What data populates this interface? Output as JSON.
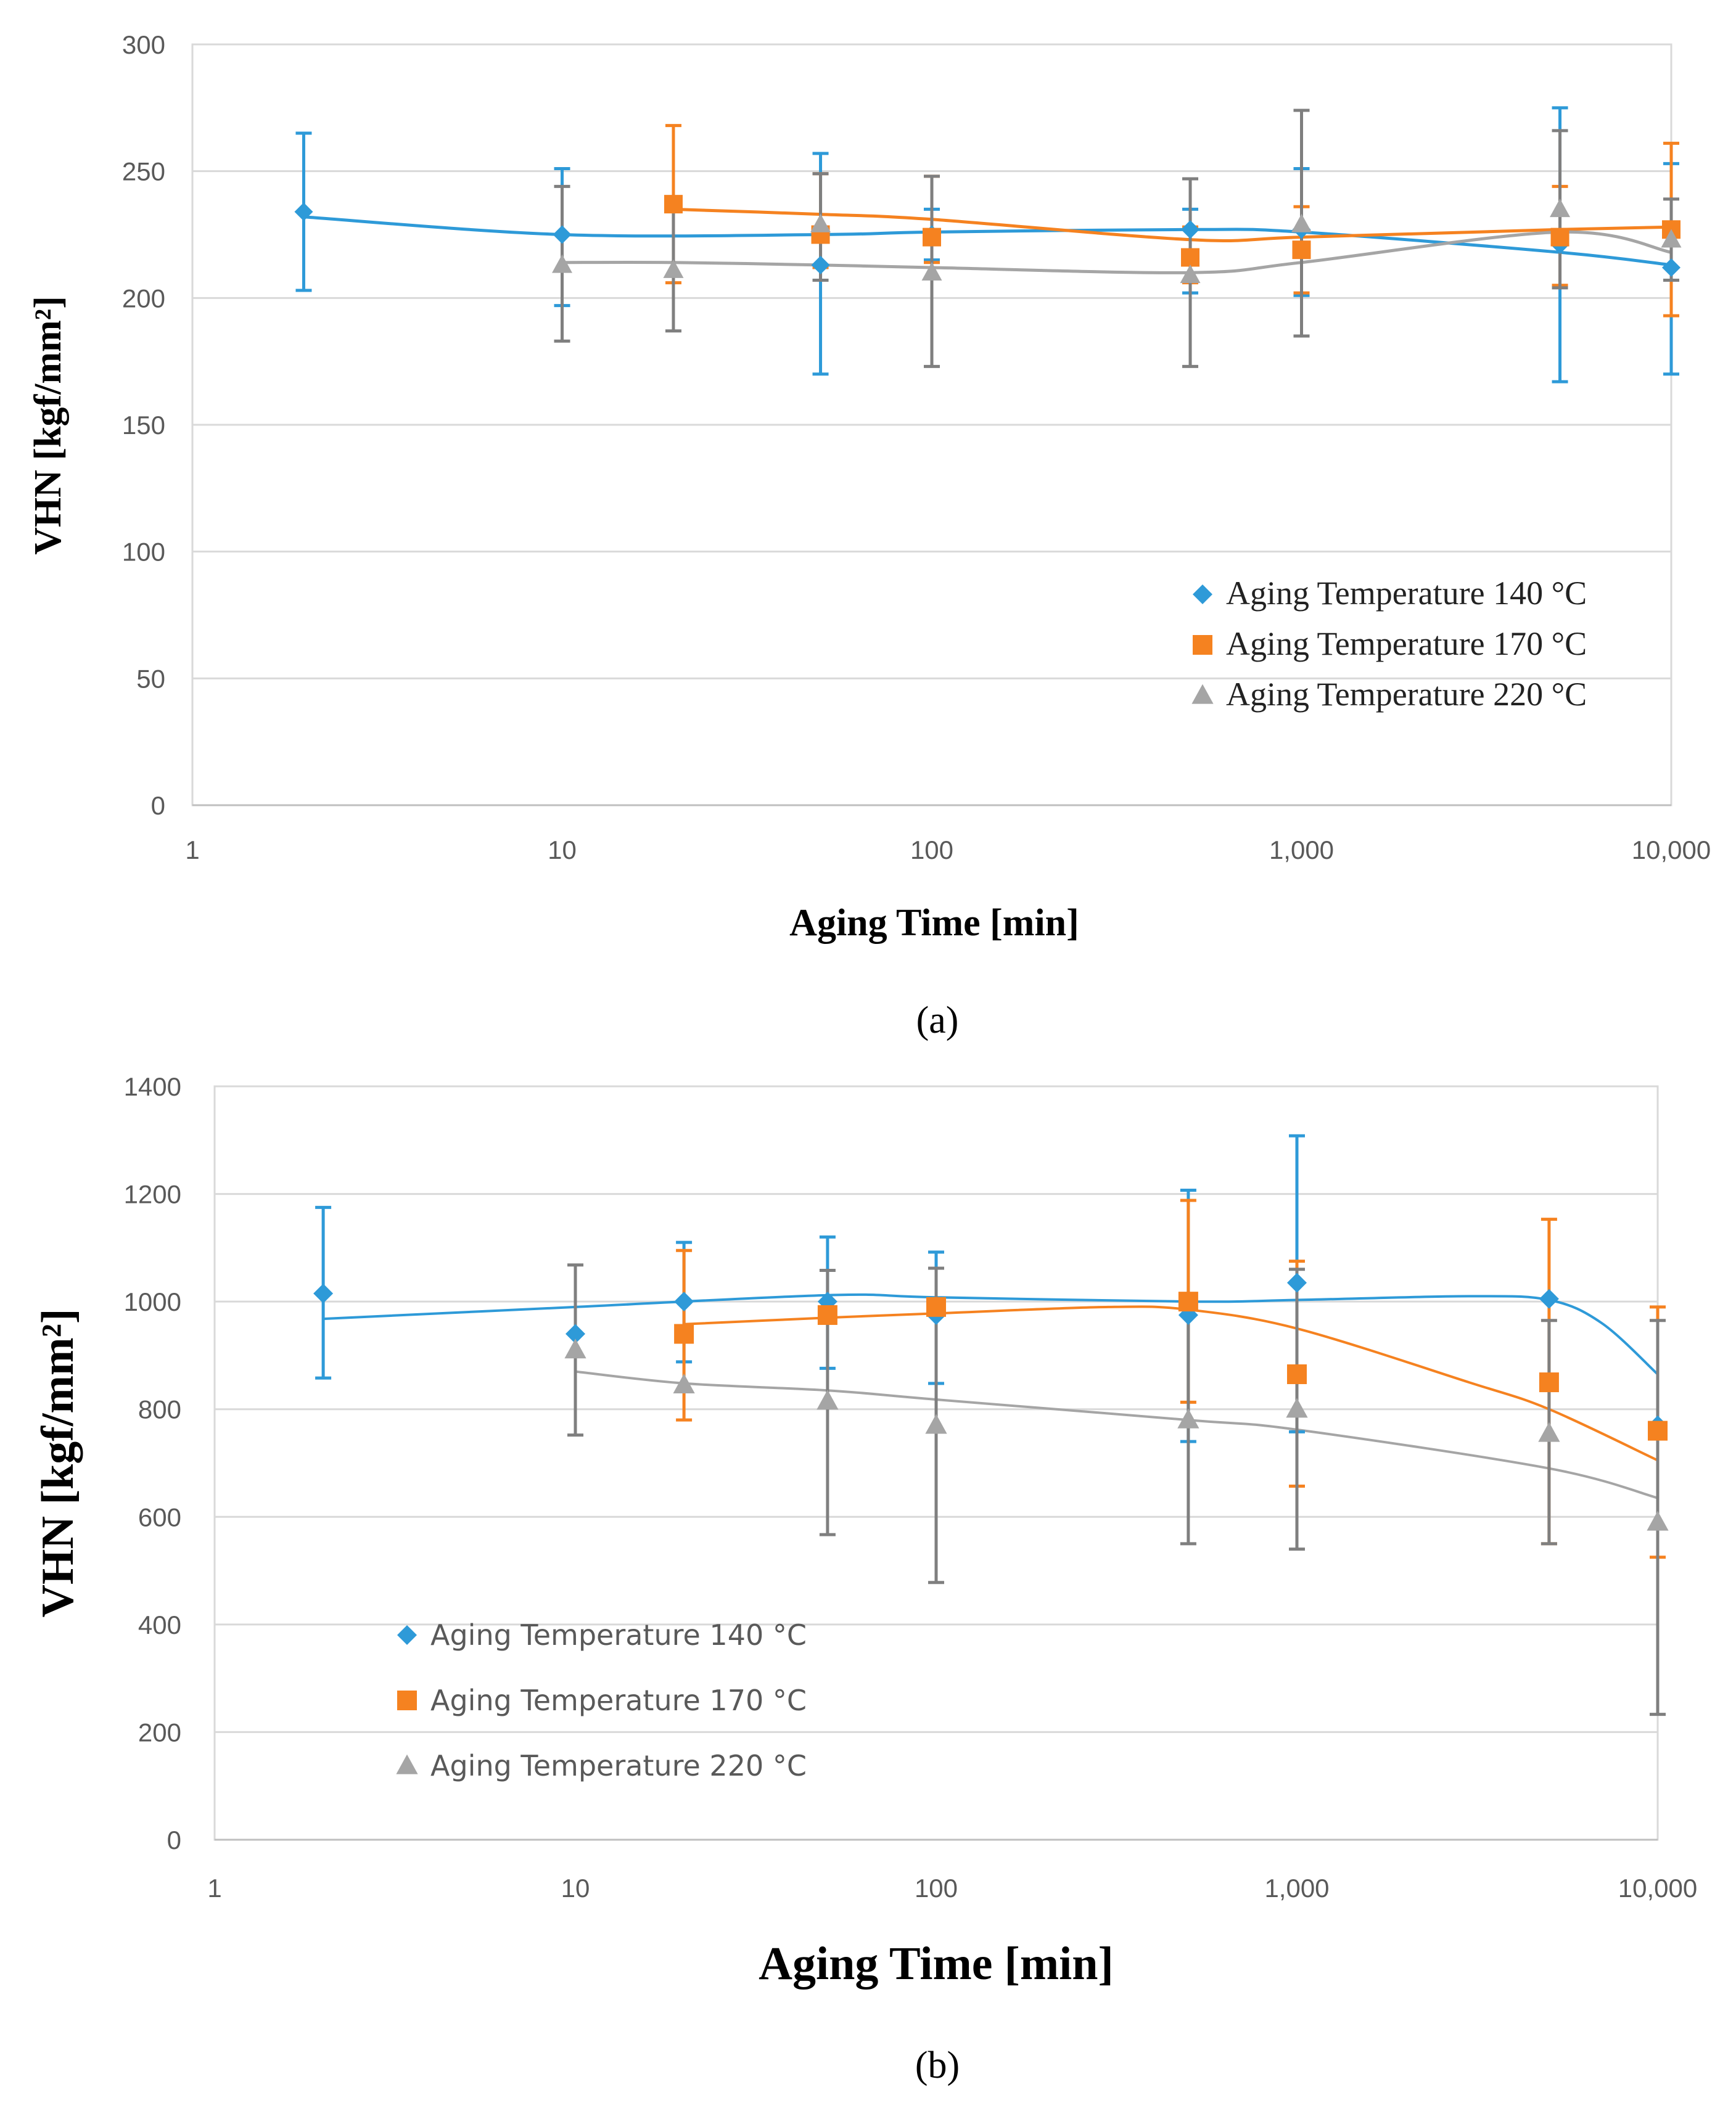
{
  "chart_data": [
    {
      "type": "line",
      "panel_label": "(a)",
      "xlabel": "Aging Time [min]",
      "ylabel": "VHN [kgf/mm²]",
      "xscale": "log",
      "xlim": [
        1,
        10000
      ],
      "ylim": [
        0,
        300
      ],
      "y_ticks": [
        "0",
        "50",
        "100",
        "150",
        "200",
        "250",
        "300"
      ],
      "x_ticks": [
        "1",
        "10",
        "100",
        "1,000",
        "10,000"
      ],
      "grid": "horizontal",
      "legend_position": "bottom-right",
      "series": [
        {
          "name": "Aging Temperature 140 °C",
          "color": "#2e9ad8",
          "marker": "diamond",
          "x": [
            2,
            10,
            50,
            100,
            500,
            1000,
            5000,
            10000
          ],
          "y": [
            234,
            225,
            213,
            225,
            227,
            227,
            221,
            212
          ],
          "err_low": [
            203,
            197,
            170,
            215,
            202,
            201,
            167,
            170
          ],
          "err_high": [
            265,
            251,
            257,
            235,
            235,
            251,
            275,
            253
          ],
          "trend_x": [
            2,
            10,
            50,
            100,
            500,
            1000,
            5000,
            10000
          ],
          "trend_y": [
            232,
            225,
            225,
            226,
            227,
            226,
            218,
            213
          ]
        },
        {
          "name": "Aging Temperature 170 °C",
          "color": "#f58220",
          "marker": "square",
          "x": [
            20,
            50,
            100,
            500,
            1000,
            5000,
            10000
          ],
          "y": [
            237,
            225,
            224,
            216,
            219,
            224,
            227
          ],
          "err_low": [
            206,
            212,
            214,
            206,
            202,
            205,
            193
          ],
          "err_high": [
            268,
            249,
            248,
            228,
            236,
            244,
            261
          ],
          "trend_x": [
            20,
            50,
            100,
            500,
            1000,
            5000,
            10000
          ],
          "trend_y": [
            235,
            233,
            231,
            223,
            224,
            227,
            228
          ]
        },
        {
          "name": "Aging Temperature 220 °C",
          "color": "#a5a5a5",
          "marker": "triangle",
          "errorbar_color": "#7f7f7f",
          "x": [
            10,
            20,
            50,
            100,
            500,
            1000,
            5000,
            10000
          ],
          "y": [
            213,
            211,
            229,
            210,
            209,
            229,
            235,
            223
          ],
          "err_low": [
            183,
            187,
            207,
            173,
            173,
            185,
            204,
            207
          ],
          "err_high": [
            244,
            237,
            249,
            248,
            247,
            274,
            266,
            239
          ],
          "trend_x": [
            10,
            20,
            50,
            100,
            500,
            1000,
            5000,
            10000
          ],
          "trend_y": [
            214,
            214,
            213,
            212,
            210,
            214,
            226,
            218
          ]
        }
      ]
    },
    {
      "type": "line",
      "panel_label": "(b)",
      "xlabel": "Aging Time [min]",
      "ylabel": "VHN [kgf/mm²]",
      "xscale": "log",
      "xlim": [
        1,
        10000
      ],
      "ylim": [
        0,
        1400
      ],
      "y_ticks": [
        "0",
        "200",
        "400",
        "600",
        "800",
        "1000",
        "1200",
        "1400"
      ],
      "x_ticks": [
        "1",
        "10",
        "100",
        "1,000",
        "10,000"
      ],
      "grid": "horizontal",
      "legend_position": "bottom-left",
      "series": [
        {
          "name": "Aging Temperature 140 °C",
          "color": "#2e9ad8",
          "marker": "diamond",
          "x": [
            2,
            10,
            20,
            50,
            100,
            500,
            1000,
            5000,
            10000
          ],
          "y": [
            1015,
            940,
            1000,
            1000,
            975,
            975,
            1035,
            1005,
            770
          ],
          "err_low": [
            858,
            940,
            888,
            876,
            848,
            740,
            758,
            1005,
            770
          ],
          "err_high": [
            1175,
            940,
            1110,
            1120,
            1092,
            1207,
            1308,
            1005,
            770
          ],
          "trend_x": [
            2,
            10,
            50,
            100,
            500,
            1000,
            3000,
            5000,
            7000,
            10000
          ],
          "trend_y": [
            968,
            990,
            1012,
            1008,
            1000,
            1003,
            1010,
            1003,
            960,
            865
          ]
        },
        {
          "name": "Aging Temperature 170 °C",
          "color": "#f58220",
          "marker": "square",
          "x": [
            20,
            50,
            100,
            500,
            1000,
            5000,
            10000
          ],
          "y": [
            940,
            975,
            990,
            1000,
            865,
            850,
            760
          ],
          "err_low": [
            780,
            975,
            990,
            813,
            657,
            550,
            525
          ],
          "err_high": [
            1095,
            975,
            990,
            1188,
            1075,
            1153,
            990
          ],
          "trend_x": [
            20,
            50,
            100,
            300,
            500,
            1000,
            3000,
            5000,
            10000
          ],
          "trend_y": [
            958,
            970,
            978,
            990,
            985,
            950,
            850,
            800,
            705
          ]
        },
        {
          "name": "Aging Temperature 220 °C",
          "color": "#a5a5a5",
          "marker": "triangle",
          "errorbar_color": "#7f7f7f",
          "x": [
            10,
            20,
            50,
            100,
            500,
            1000,
            5000,
            10000
          ],
          "y": [
            910,
            845,
            815,
            770,
            780,
            800,
            755,
            590
          ],
          "err_low": [
            752,
            845,
            567,
            478,
            550,
            540,
            550,
            233
          ],
          "err_high": [
            1068,
            845,
            1058,
            1062,
            1010,
            1060,
            965,
            965
          ],
          "trend_x": [
            10,
            20,
            50,
            100,
            500,
            1000,
            5000,
            10000
          ],
          "trend_y": [
            870,
            848,
            835,
            818,
            780,
            762,
            690,
            635
          ]
        }
      ]
    }
  ]
}
